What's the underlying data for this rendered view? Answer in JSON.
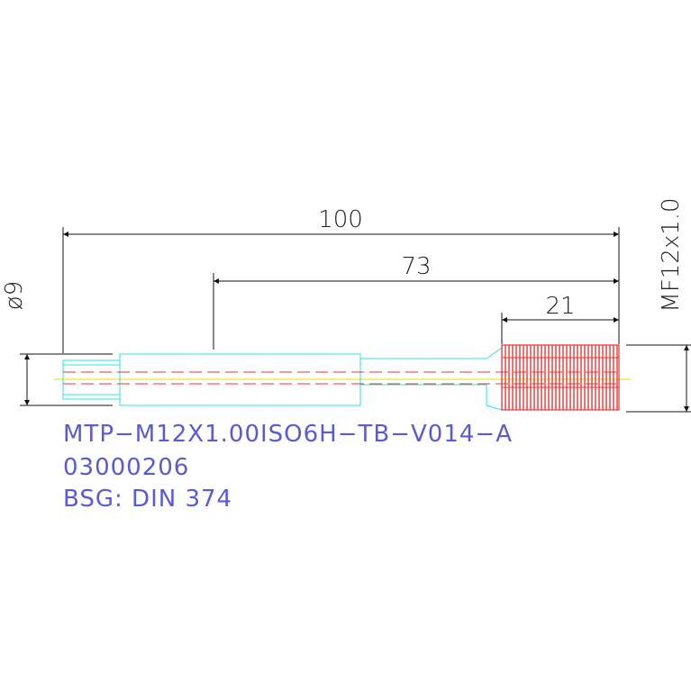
{
  "dimensions": {
    "length_total": "100",
    "length_shank": "73",
    "length_thread": "21",
    "diameter": "ø9",
    "thread": "MF12x1.0"
  },
  "labels": [
    "MTP−M12X1.00ISO6H−TB−V014−A",
    "03000206",
    "BSG: DIN  374"
  ]
}
